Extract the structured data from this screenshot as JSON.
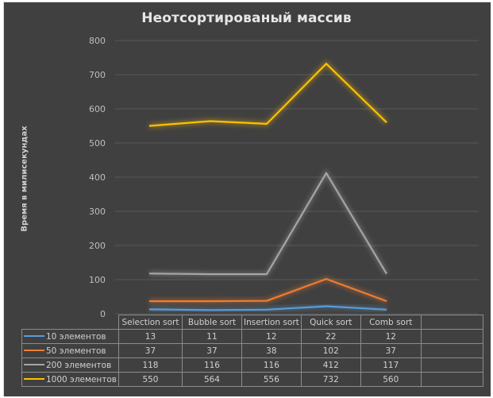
{
  "chart_data": {
    "type": "line",
    "title": "Неотсортированый массив",
    "xlabel": "",
    "ylabel": "Время в милисекундах",
    "ylim": [
      0,
      800
    ],
    "yticks": [
      0,
      100,
      200,
      300,
      400,
      500,
      600,
      700,
      800
    ],
    "grid": true,
    "legend_position": "data-table",
    "categories": [
      "Selection sort",
      "Bubble sort",
      "Insertion sort",
      "Quick sort",
      "Comb sort"
    ],
    "series": [
      {
        "name": "10 элементов",
        "color": "#5b9bd5",
        "values": [
          13,
          11,
          12,
          22,
          12
        ]
      },
      {
        "name": "50 элементов",
        "color": "#ed7d31",
        "values": [
          37,
          37,
          38,
          102,
          37
        ]
      },
      {
        "name": "200 элементов",
        "color": "#a5a5a5",
        "values": [
          118,
          116,
          116,
          412,
          117
        ]
      },
      {
        "name": "1000 элементов",
        "color": "#ffc000",
        "values": [
          550,
          564,
          556,
          732,
          560
        ]
      }
    ]
  },
  "colors": {
    "background": "#404040",
    "gridline": "#595959",
    "text": "#d0d0d0"
  }
}
